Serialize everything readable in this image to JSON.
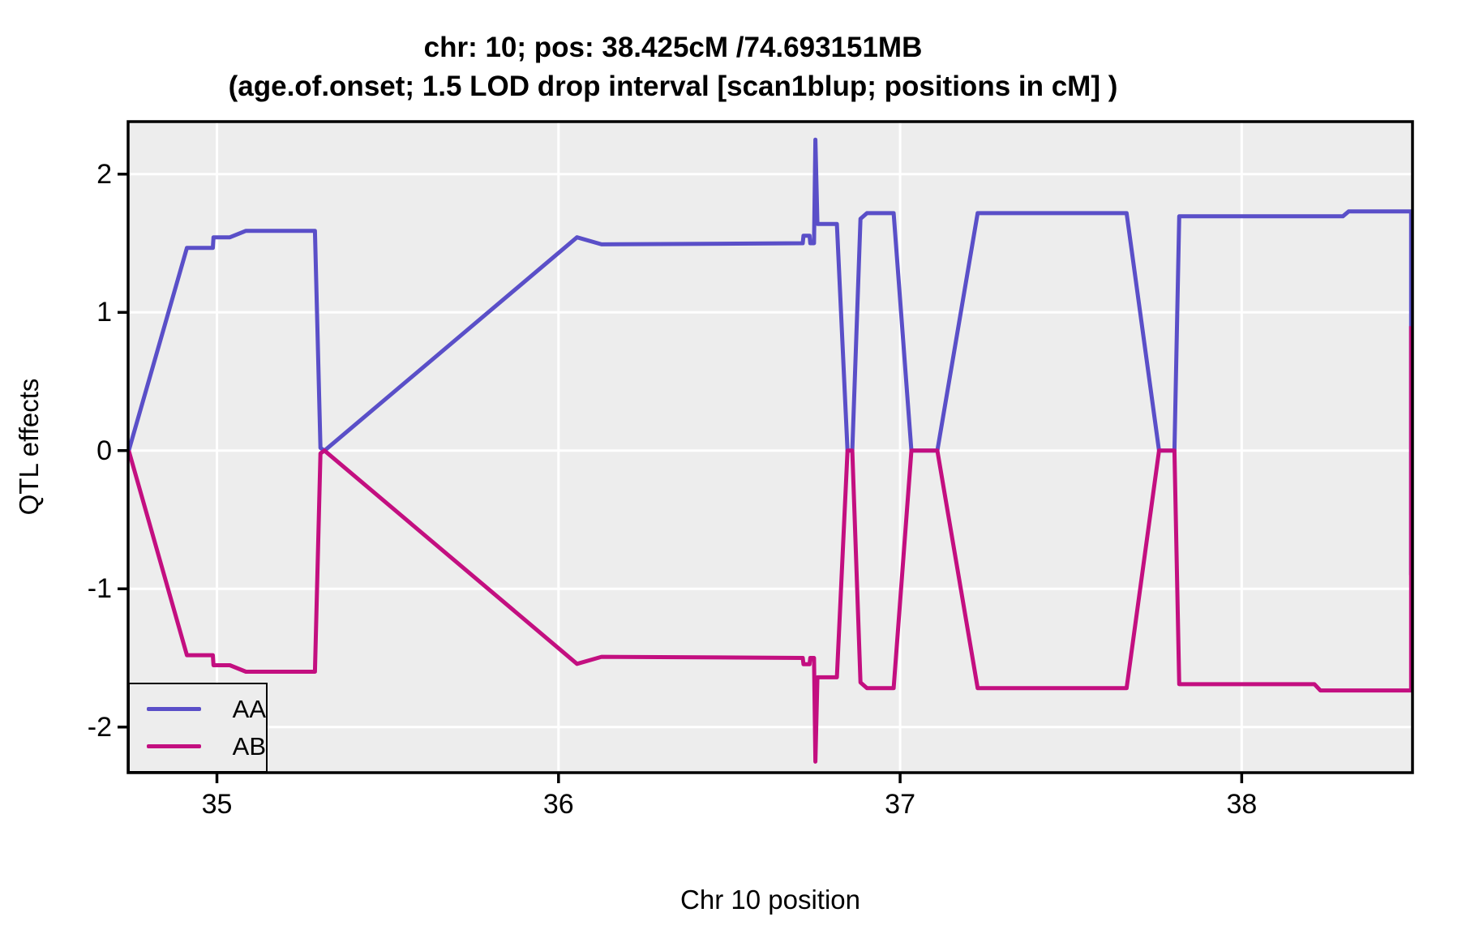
{
  "title": {
    "line1": "chr: 10; pos: 38.425cM /74.693151MB",
    "line2": "(age.of.onset; 1.5 LOD drop interval [scan1blup; positions in cM] )"
  },
  "axes": {
    "x": {
      "label": "Chr 10 position",
      "ticks": [
        35,
        36,
        37,
        38
      ]
    },
    "y": {
      "label": "QTL effects",
      "ticks": [
        -2,
        -1,
        0,
        1,
        2
      ]
    }
  },
  "legend": {
    "position": "bottom-left-inside",
    "items": [
      {
        "label": "AA"
      },
      {
        "label": "AB"
      }
    ]
  },
  "colors": {
    "series_AA": "#5A4FC8",
    "series_AB": "#C30F80",
    "panel_background": "#EDEDED",
    "gridline": "#FFFFFF",
    "panel_border": "#000000",
    "text": "#000000"
  },
  "chart_data": {
    "type": "line",
    "title": "chr: 10; pos: 38.425cM /74.693151MB (age.of.onset; 1.5 LOD drop interval [scan1blup; positions in cM] )",
    "xlabel": "Chr 10 position",
    "ylabel": "QTL effects",
    "xlim": [
      34.74,
      38.5
    ],
    "ylim": [
      -2.33,
      2.38
    ],
    "x_ticks": [
      35,
      36,
      37,
      38
    ],
    "y_ticks": [
      -2,
      -1,
      0,
      1,
      2
    ],
    "grid": "major-only, white on gray panel",
    "legend_position": "bottom-left inside panel",
    "series": [
      {
        "name": "AA",
        "color": "#5A4FC8",
        "points": [
          [
            34.742,
            0.0
          ],
          [
            34.912,
            1.466
          ],
          [
            34.988,
            1.466
          ],
          [
            34.99,
            1.543
          ],
          [
            35.038,
            1.543
          ],
          [
            35.085,
            1.59
          ],
          [
            35.287,
            1.59
          ],
          [
            35.303,
            0.02
          ],
          [
            35.315,
            0.0
          ],
          [
            36.054,
            1.543
          ],
          [
            36.126,
            1.492
          ],
          [
            36.715,
            1.5
          ],
          [
            36.717,
            1.555
          ],
          [
            36.735,
            1.555
          ],
          [
            36.737,
            1.5
          ],
          [
            36.748,
            1.5
          ],
          [
            36.752,
            2.25
          ],
          [
            36.758,
            1.64
          ],
          [
            36.815,
            1.64
          ],
          [
            36.846,
            0.0
          ],
          [
            36.86,
            0.0
          ],
          [
            36.884,
            1.677
          ],
          [
            36.903,
            1.718
          ],
          [
            36.981,
            1.718
          ],
          [
            37.033,
            0.0
          ],
          [
            37.109,
            0.0
          ],
          [
            37.227,
            1.718
          ],
          [
            37.663,
            1.718
          ],
          [
            37.758,
            0.0
          ],
          [
            37.803,
            0.0
          ],
          [
            37.817,
            1.695
          ],
          [
            38.296,
            1.695
          ],
          [
            38.313,
            1.73
          ],
          [
            38.496,
            1.73
          ],
          [
            38.496,
            -0.9
          ]
        ]
      },
      {
        "name": "AB",
        "color": "#C30F80",
        "points": [
          [
            34.742,
            0.0
          ],
          [
            34.912,
            -1.48
          ],
          [
            34.988,
            -1.48
          ],
          [
            34.99,
            -1.553
          ],
          [
            35.038,
            -1.553
          ],
          [
            35.085,
            -1.6
          ],
          [
            35.287,
            -1.6
          ],
          [
            35.303,
            -0.02
          ],
          [
            35.315,
            0.0
          ],
          [
            36.054,
            -1.543
          ],
          [
            36.126,
            -1.492
          ],
          [
            36.715,
            -1.5
          ],
          [
            36.717,
            -1.545
          ],
          [
            36.735,
            -1.545
          ],
          [
            36.737,
            -1.5
          ],
          [
            36.748,
            -1.5
          ],
          [
            36.752,
            -2.25
          ],
          [
            36.758,
            -1.64
          ],
          [
            36.815,
            -1.64
          ],
          [
            36.846,
            0.0
          ],
          [
            36.86,
            0.0
          ],
          [
            36.884,
            -1.677
          ],
          [
            36.903,
            -1.718
          ],
          [
            36.981,
            -1.718
          ],
          [
            37.033,
            0.0
          ],
          [
            37.109,
            0.0
          ],
          [
            37.227,
            -1.718
          ],
          [
            37.663,
            -1.718
          ],
          [
            37.758,
            0.0
          ],
          [
            37.803,
            0.0
          ],
          [
            37.817,
            -1.69
          ],
          [
            38.213,
            -1.69
          ],
          [
            38.23,
            -1.735
          ],
          [
            38.496,
            -1.735
          ],
          [
            38.496,
            0.9
          ]
        ]
      }
    ]
  }
}
